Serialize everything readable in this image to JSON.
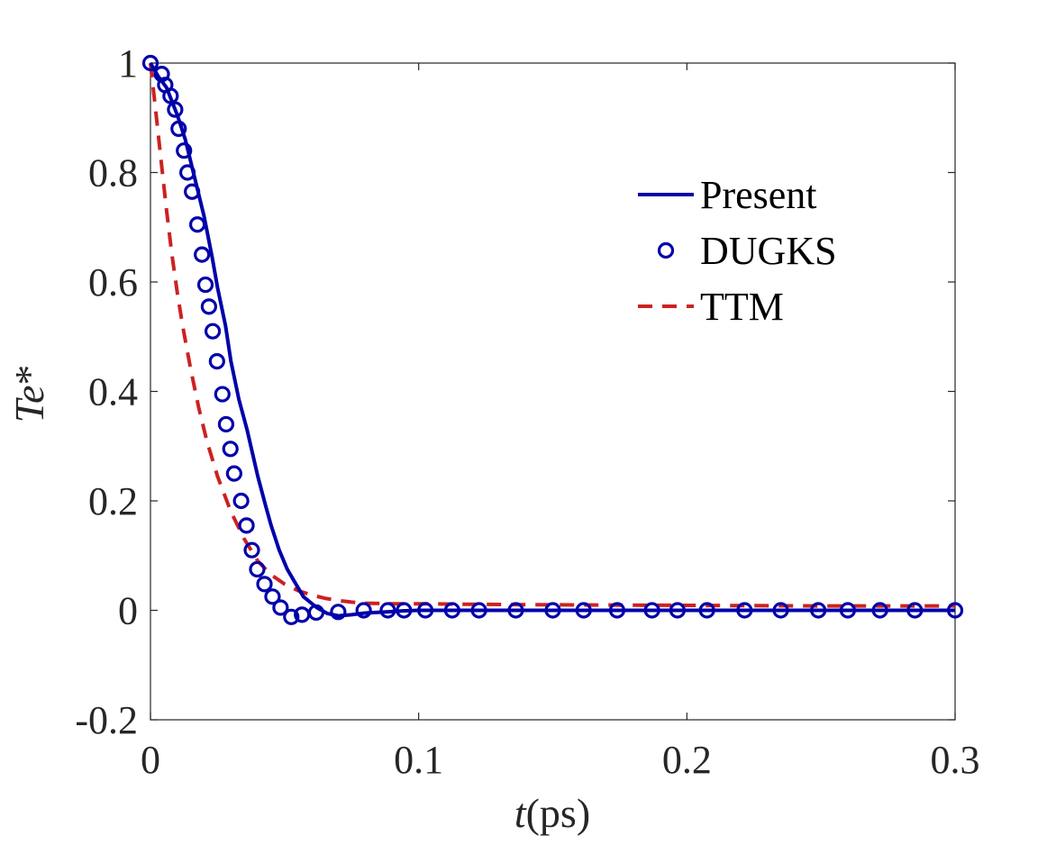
{
  "chart_data": {
    "type": "line",
    "xlabel": {
      "var": "t",
      "unit": "(ps)"
    },
    "ylabel": {
      "var": "Te",
      "suffix": "*"
    },
    "xlim": [
      0,
      0.3
    ],
    "ylim": [
      -0.2,
      1
    ],
    "x_ticks": [
      0,
      0.1,
      0.2,
      0.3
    ],
    "x_tick_labels": [
      "0",
      "0.1",
      "0.2",
      "0.3"
    ],
    "y_ticks": [
      -0.2,
      0,
      0.2,
      0.4,
      0.6,
      0.8,
      1
    ],
    "y_tick_labels": [
      "-0.2",
      "0",
      "0.2",
      "0.4",
      "0.6",
      "0.8",
      "1"
    ],
    "grid": false,
    "legend_position": "top-right",
    "series": [
      {
        "name": "Present",
        "style": "solid",
        "color": "#0000aa",
        "x": [
          0,
          0.003,
          0.006,
          0.008,
          0.01,
          0.013,
          0.016,
          0.02,
          0.023,
          0.025,
          0.028,
          0.03,
          0.033,
          0.036,
          0.04,
          0.043,
          0.045,
          0.048,
          0.051,
          0.054,
          0.057,
          0.062,
          0.066,
          0.07,
          0.075,
          0.08,
          0.088,
          0.094,
          0.1,
          0.113,
          0.123,
          0.137,
          0.15,
          0.162,
          0.174,
          0.187,
          0.197,
          0.208,
          0.222,
          0.235,
          0.249,
          0.26,
          0.272,
          0.285,
          0.3
        ],
        "y": [
          1.0,
          0.975,
          0.955,
          0.93,
          0.905,
          0.86,
          0.8,
          0.72,
          0.645,
          0.59,
          0.52,
          0.455,
          0.385,
          0.33,
          0.245,
          0.19,
          0.155,
          0.11,
          0.075,
          0.05,
          0.025,
          0.005,
          -0.006,
          -0.01,
          -0.008,
          -0.005,
          -0.003,
          -0.001,
          0.0,
          0.0,
          0.0,
          0.0,
          0.0,
          0.0,
          0.0,
          0.0,
          0.0,
          0.0,
          0.0,
          0.0,
          0.0,
          0.0,
          0.0,
          0.0,
          0.0
        ]
      },
      {
        "name": "DUGKS",
        "style": "markers",
        "marker": "circle",
        "color": "#0000aa",
        "x": [
          0,
          0.0042,
          0.0055,
          0.0075,
          0.0092,
          0.0105,
          0.0125,
          0.0138,
          0.0155,
          0.0175,
          0.0192,
          0.0205,
          0.0218,
          0.0232,
          0.0248,
          0.0268,
          0.0282,
          0.0298,
          0.0312,
          0.0338,
          0.0358,
          0.0378,
          0.0398,
          0.0425,
          0.0455,
          0.0485,
          0.0525,
          0.0565,
          0.0618,
          0.07,
          0.0795,
          0.0885,
          0.0945,
          0.1025,
          0.1125,
          0.1225,
          0.1362,
          0.15,
          0.1615,
          0.174,
          0.187,
          0.1965,
          0.2075,
          0.2215,
          0.235,
          0.249,
          0.26,
          0.272,
          0.285,
          0.3
        ],
        "y": [
          1.0,
          0.98,
          0.96,
          0.94,
          0.915,
          0.88,
          0.84,
          0.8,
          0.765,
          0.705,
          0.65,
          0.595,
          0.555,
          0.51,
          0.455,
          0.395,
          0.34,
          0.295,
          0.25,
          0.2,
          0.155,
          0.11,
          0.075,
          0.048,
          0.025,
          0.005,
          -0.012,
          -0.008,
          -0.004,
          -0.003,
          0.0,
          0.0,
          0.0,
          0.0,
          0.0,
          0.0,
          0.0,
          0.0,
          0.0,
          0.0,
          0.0,
          0.0,
          0.0,
          0.0,
          0.0,
          0.0,
          0.0,
          0.0,
          0.0,
          0.0
        ]
      },
      {
        "name": "TTM",
        "style": "dashed",
        "color": "#cc2222",
        "x": [
          0,
          0.002,
          0.004,
          0.006,
          0.008,
          0.01,
          0.012,
          0.015,
          0.018,
          0.021,
          0.025,
          0.03,
          0.035,
          0.04,
          0.045,
          0.05,
          0.055,
          0.06,
          0.065,
          0.07,
          0.075,
          0.08,
          0.09,
          0.1,
          0.12,
          0.15,
          0.2,
          0.25,
          0.3
        ],
        "y": [
          1.0,
          0.91,
          0.82,
          0.73,
          0.65,
          0.58,
          0.52,
          0.44,
          0.37,
          0.31,
          0.245,
          0.18,
          0.13,
          0.09,
          0.065,
          0.048,
          0.036,
          0.028,
          0.022,
          0.018,
          0.015,
          0.013,
          0.012,
          0.012,
          0.011,
          0.01,
          0.009,
          0.008,
          0.008
        ]
      }
    ]
  }
}
